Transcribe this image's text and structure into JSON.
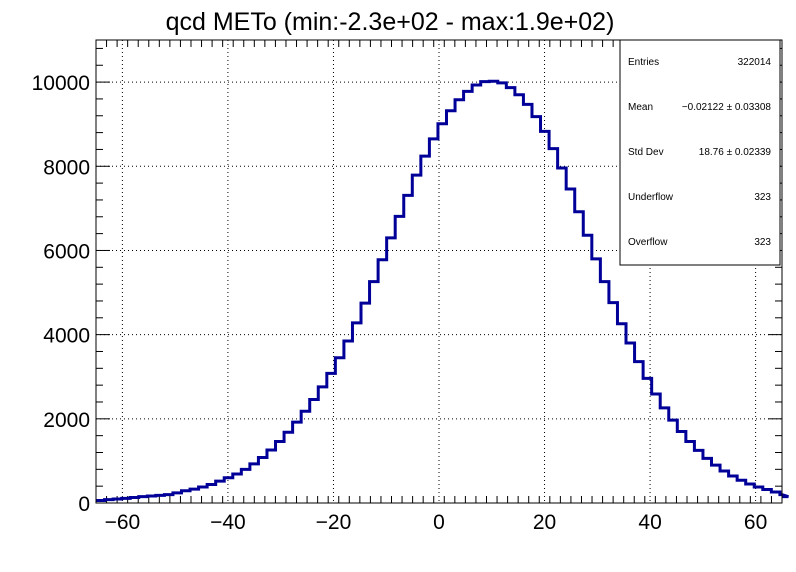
{
  "chart_data": {
    "type": "histogram",
    "title": "qcd METo (min:-2.3e+02 - max:1.9e+02)",
    "xlabel": "",
    "ylabel": "",
    "xlim": [
      -65,
      65
    ],
    "ylim": [
      0,
      11000
    ],
    "grid": true,
    "line_color": "#000099",
    "x_ticks": [
      -60,
      -40,
      -20,
      0,
      20,
      40,
      60
    ],
    "x_tick_labels": [
      "−60",
      "−40",
      "−20",
      "0",
      "20",
      "40",
      "60"
    ],
    "y_ticks": [
      0,
      2000,
      4000,
      6000,
      8000,
      10000
    ],
    "y_tick_labels": [
      "0",
      "2000",
      "4000",
      "6000",
      "8000",
      "10000"
    ],
    "bin_edges_start": -65,
    "bin_width": 1.62,
    "counts": [
      60,
      80,
      95,
      110,
      130,
      150,
      165,
      180,
      200,
      240,
      290,
      330,
      380,
      440,
      520,
      600,
      690,
      800,
      930,
      1080,
      1260,
      1460,
      1680,
      1920,
      2180,
      2460,
      2760,
      3080,
      3450,
      3850,
      4280,
      4750,
      5260,
      5780,
      6300,
      6810,
      7310,
      7790,
      8240,
      8650,
      9010,
      9320,
      9580,
      9780,
      9930,
      10010,
      10020,
      9980,
      9870,
      9700,
      9470,
      9180,
      8830,
      8420,
      7960,
      7460,
      6920,
      6360,
      5800,
      5260,
      4760,
      4260,
      3800,
      3360,
      2960,
      2590,
      2260,
      1970,
      1700,
      1460,
      1250,
      1060,
      900,
      760,
      640,
      540,
      450,
      380,
      320,
      260,
      200,
      150
    ],
    "stats_box": {
      "rows": [
        {
          "label": "Entries",
          "value": "322014"
        },
        {
          "label": "Mean",
          "value": "−0.02122 ± 0.03308"
        },
        {
          "label": "Std Dev",
          "value": "18.76 ± 0.02339"
        },
        {
          "label": "Underflow",
          "value": "323"
        },
        {
          "label": "Overflow",
          "value": "323"
        }
      ]
    }
  }
}
